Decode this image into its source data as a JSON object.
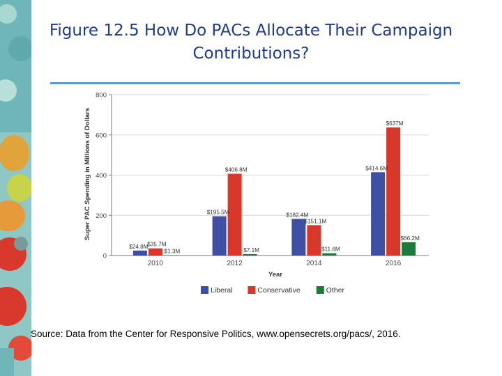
{
  "slide": {
    "title_line1": "Figure 12.5 How Do PACs Allocate Their Campaign",
    "title_line2": "Contributions?",
    "source": "Source: Data from the Center for Responsive Politics, www.opensecrets.org/pacs/, 2016."
  },
  "chart_data": {
    "type": "bar",
    "title": "",
    "xlabel": "Year",
    "ylabel": "Super PAC Spending in Millions of Dollars",
    "ylim": [
      0,
      800
    ],
    "yticks": [
      0,
      200,
      400,
      600,
      800
    ],
    "categories": [
      "2010",
      "2012",
      "2014",
      "2016"
    ],
    "series": [
      {
        "name": "Liberal",
        "color": "#3f4fa3",
        "values": [
          24.8,
          195.5,
          182.4,
          414.6
        ],
        "labels": [
          "$24.8M",
          "$195.5M",
          "$182.4M",
          "$414.6M"
        ]
      },
      {
        "name": "Conservative",
        "color": "#d8372a",
        "values": [
          35.7,
          406.8,
          151.1,
          637
        ],
        "labels": [
          "$35.7M",
          "$406.8M",
          "$151.1M",
          "$637M"
        ]
      },
      {
        "name": "Other",
        "color": "#1e7a3c",
        "values": [
          1.3,
          7.1,
          11.6,
          66.2
        ],
        "labels": [
          "$1.3M",
          "$7.1M",
          "$11.6M",
          "$66.2M"
        ]
      }
    ],
    "legend_position": "bottom"
  }
}
